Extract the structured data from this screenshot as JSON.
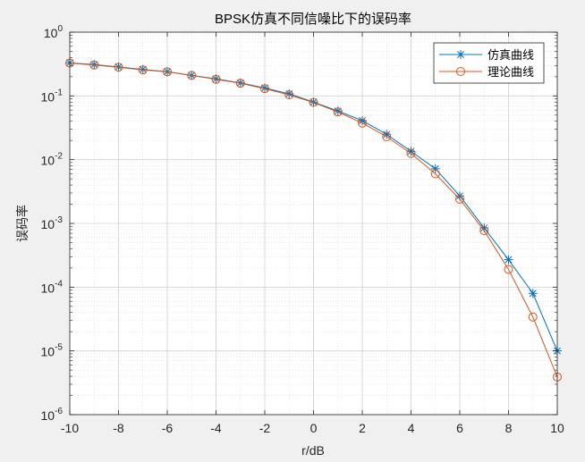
{
  "chart_data": {
    "type": "line",
    "title": "BPSK仿真不同信噪比下的误码率",
    "xlabel": "r/dB",
    "ylabel": "误码率",
    "xlim": [
      -10,
      10
    ],
    "ylim": [
      1e-06,
      1
    ],
    "yscale": "log",
    "grid": true,
    "minor_grid": true,
    "legend_position": "top-right",
    "x": [
      -10,
      -9,
      -8,
      -7,
      -6,
      -5,
      -4,
      -3,
      -2,
      -1,
      0,
      1,
      2,
      3,
      4,
      5,
      6,
      7,
      8,
      9,
      10
    ],
    "x_ticks": [
      "-10",
      "-8",
      "-6",
      "-4",
      "-2",
      "0",
      "2",
      "4",
      "6",
      "8",
      "10"
    ],
    "y_ticks": [
      {
        "base": "10",
        "exp": "0"
      },
      {
        "base": "10",
        "exp": "-1"
      },
      {
        "base": "10",
        "exp": "-2"
      },
      {
        "base": "10",
        "exp": "-3"
      },
      {
        "base": "10",
        "exp": "-4"
      },
      {
        "base": "10",
        "exp": "-5"
      },
      {
        "base": "10",
        "exp": "-6"
      }
    ],
    "series": [
      {
        "name": "仿真曲线",
        "color": "#0072BD",
        "marker": "asterisk",
        "values": [
          0.33,
          0.31,
          0.285,
          0.26,
          0.24,
          0.21,
          0.185,
          0.16,
          0.133,
          0.108,
          0.08,
          0.058,
          0.041,
          0.025,
          0.0135,
          0.0072,
          0.0027,
          0.00085,
          0.00027,
          8e-05,
          1e-05
        ]
      },
      {
        "name": "理论曲线",
        "color": "#D95319",
        "marker": "circle",
        "values": [
          0.327,
          0.305,
          0.282,
          0.256,
          0.239,
          0.21,
          0.182,
          0.158,
          0.13,
          0.104,
          0.079,
          0.056,
          0.0375,
          0.0229,
          0.0125,
          0.006,
          0.0024,
          0.00077,
          0.00019,
          3.4e-05,
          3.9e-06
        ]
      }
    ]
  }
}
